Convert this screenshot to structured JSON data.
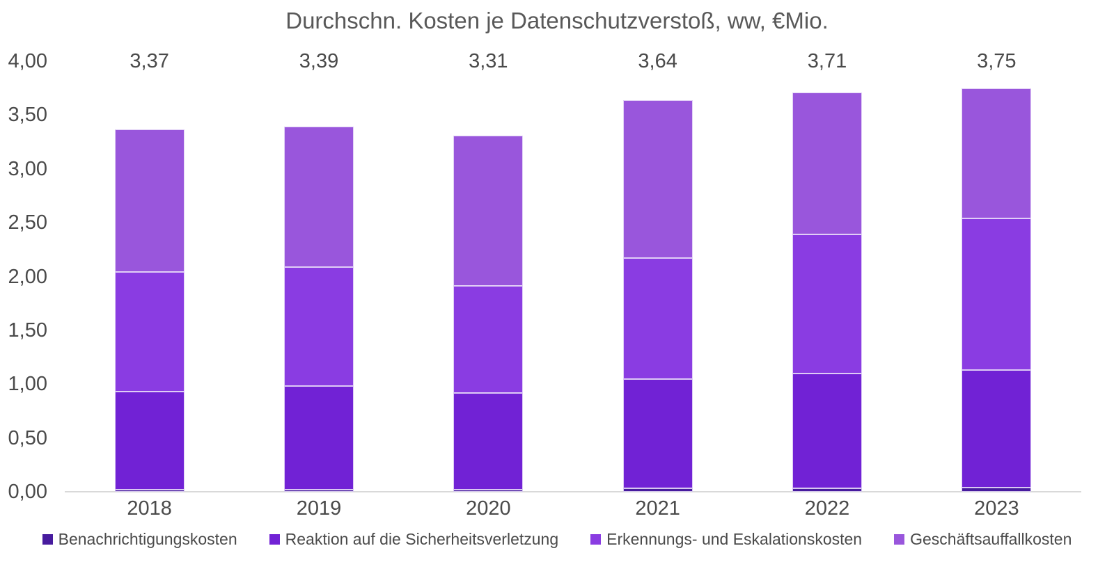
{
  "title": "Durchschn. Kosten je Datenschutzverstoß, ww, €Mio.",
  "chart_data": {
    "type": "bar",
    "stacked": true,
    "title": "Durchschn. Kosten je Datenschutzverstoß, ww, €Mio.",
    "categories": [
      "2018",
      "2019",
      "2020",
      "2021",
      "2022",
      "2023"
    ],
    "series": [
      {
        "name": "Benachrichtigungskosten",
        "color": "#471b9e",
        "values": [
          0.02,
          0.02,
          0.02,
          0.03,
          0.03,
          0.04
        ]
      },
      {
        "name": "Reaktion auf die Sicherheitsverletzung",
        "color": "#7122d5",
        "values": [
          0.91,
          0.96,
          0.9,
          1.02,
          1.07,
          1.09
        ]
      },
      {
        "name": "Erkennungs- und Eskalationskosten",
        "color": "#8a3ce2",
        "values": [
          1.11,
          1.11,
          0.99,
          1.12,
          1.29,
          1.41
        ]
      },
      {
        "name": "Geschäftsauffallkosten",
        "color": "#9956dc",
        "values": [
          1.33,
          1.3,
          1.4,
          1.47,
          1.32,
          1.21
        ]
      }
    ],
    "totals": [
      3.37,
      3.39,
      3.31,
      3.64,
      3.71,
      3.75
    ],
    "total_labels": [
      "3,37",
      "3,39",
      "3,31",
      "3,64",
      "3,71",
      "3,75"
    ],
    "y_axis": {
      "min": 0,
      "max": 4,
      "step": 0.5,
      "tick_labels": [
        "0,00",
        "0,50",
        "1,00",
        "1,50",
        "2,00",
        "2,50",
        "3,00",
        "3,50",
        "4,00"
      ]
    },
    "grid": false,
    "legend_position": "bottom",
    "axis_line_color": "#d9d9d9"
  }
}
